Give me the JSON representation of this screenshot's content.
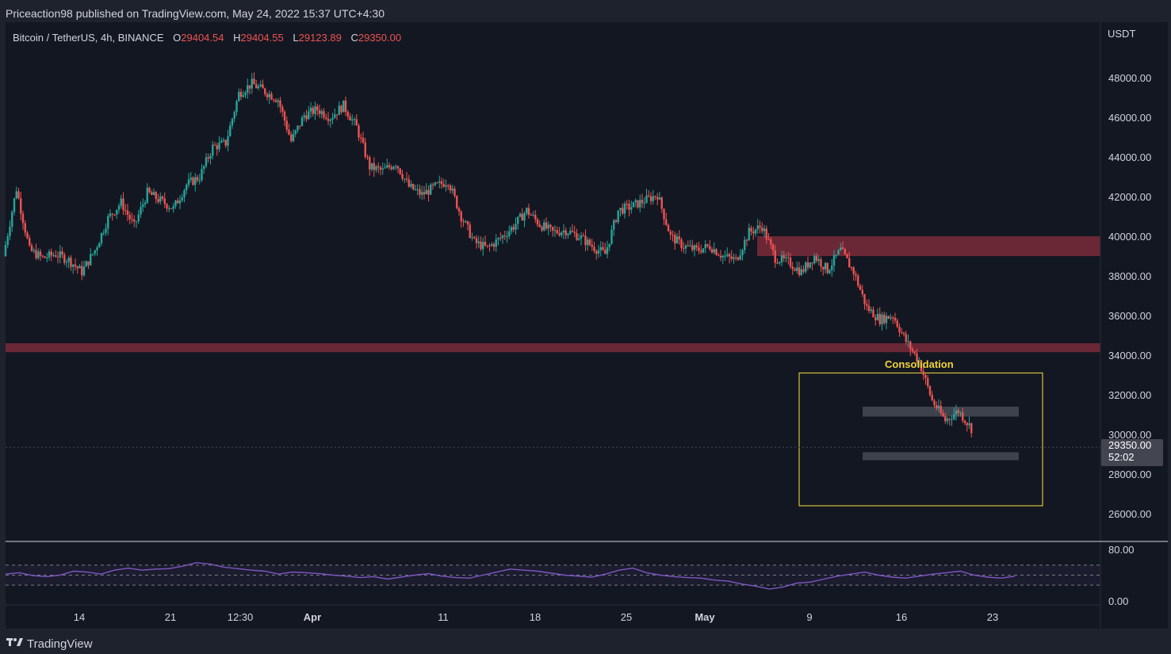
{
  "header": {
    "published_by": "Priceaction98 published on TradingView.com, May 24, 2022 15:37 UTC+4:30"
  },
  "legend": {
    "symbol": "Bitcoin / TetherUS, 4h, BINANCE",
    "open_label": "O",
    "open": "29404.54",
    "high_label": "H",
    "high": "29404.55",
    "low_label": "L",
    "low": "29123.89",
    "close_label": "C",
    "close": "29350.00"
  },
  "price_scale": {
    "currency": "USDT",
    "last_price": "29350.00",
    "countdown": "52:02"
  },
  "annotation": {
    "label": "Consolidation"
  },
  "branding": {
    "name": "TradingView"
  },
  "colors": {
    "up": "#26a69a",
    "down": "#ef5350",
    "zone": "#7a2a3a",
    "consolidation_box": "#d6c23a",
    "range_band": "#4a4d57",
    "rsi_line": "#7e57c2"
  },
  "chart_data": {
    "type": "candlestick",
    "title": "",
    "ylabel": "USDT",
    "ylim": [
      24500,
      49700
    ],
    "y_ticks": [
      48000,
      46000,
      44000,
      42000,
      40000,
      38000,
      36000,
      34000,
      32000,
      30000,
      28000,
      26000
    ],
    "x_ticks": [
      "14",
      "21",
      "12:30",
      "Apr",
      "11",
      "18",
      "25",
      "May",
      "9",
      "16",
      "23"
    ],
    "series_close": [
      {
        "date": "2022-03-10",
        "close": 39000
      },
      {
        "date": "2022-03-11",
        "close": 42400
      },
      {
        "date": "2022-03-12",
        "close": 39300
      },
      {
        "date": "2022-03-13",
        "close": 38900
      },
      {
        "date": "2022-03-14",
        "close": 39100
      },
      {
        "date": "2022-03-15",
        "close": 38800
      },
      {
        "date": "2022-03-16",
        "close": 38200
      },
      {
        "date": "2022-03-17",
        "close": 39300
      },
      {
        "date": "2022-03-18",
        "close": 40900
      },
      {
        "date": "2022-03-19",
        "close": 41700
      },
      {
        "date": "2022-03-20",
        "close": 40500
      },
      {
        "date": "2022-03-21",
        "close": 42200
      },
      {
        "date": "2022-03-22",
        "close": 41800
      },
      {
        "date": "2022-03-23",
        "close": 41400
      },
      {
        "date": "2022-03-24",
        "close": 42600
      },
      {
        "date": "2022-03-25",
        "close": 43000
      },
      {
        "date": "2022-03-26",
        "close": 44500
      },
      {
        "date": "2022-03-27",
        "close": 44700
      },
      {
        "date": "2022-03-28",
        "close": 47200
      },
      {
        "date": "2022-03-29",
        "close": 47700
      },
      {
        "date": "2022-03-30",
        "close": 47300
      },
      {
        "date": "2022-03-31",
        "close": 46900
      },
      {
        "date": "2022-04-01",
        "close": 44800
      },
      {
        "date": "2022-04-02",
        "close": 46100
      },
      {
        "date": "2022-04-03",
        "close": 46400
      },
      {
        "date": "2022-04-04",
        "close": 46000
      },
      {
        "date": "2022-04-05",
        "close": 46600
      },
      {
        "date": "2022-04-06",
        "close": 45500
      },
      {
        "date": "2022-04-07",
        "close": 43500
      },
      {
        "date": "2022-04-08",
        "close": 43300
      },
      {
        "date": "2022-04-09",
        "close": 43700
      },
      {
        "date": "2022-04-10",
        "close": 42500
      },
      {
        "date": "2022-04-11",
        "close": 42100
      },
      {
        "date": "2022-04-12",
        "close": 42500
      },
      {
        "date": "2022-04-13",
        "close": 42800
      },
      {
        "date": "2022-04-14",
        "close": 41000
      },
      {
        "date": "2022-04-15",
        "close": 39700
      },
      {
        "date": "2022-04-16",
        "close": 39400
      },
      {
        "date": "2022-04-17",
        "close": 39900
      },
      {
        "date": "2022-04-18",
        "close": 40500
      },
      {
        "date": "2022-04-19",
        "close": 41300
      },
      {
        "date": "2022-04-20",
        "close": 40600
      },
      {
        "date": "2022-04-21",
        "close": 40200
      },
      {
        "date": "2022-04-22",
        "close": 40300
      },
      {
        "date": "2022-04-23",
        "close": 40000
      },
      {
        "date": "2022-04-24",
        "close": 39500
      },
      {
        "date": "2022-04-25",
        "close": 39100
      },
      {
        "date": "2022-04-26",
        "close": 41300
      },
      {
        "date": "2022-04-27",
        "close": 41500
      },
      {
        "date": "2022-04-28",
        "close": 41800
      },
      {
        "date": "2022-04-29",
        "close": 42100
      },
      {
        "date": "2022-04-30",
        "close": 40000
      },
      {
        "date": "2022-05-01",
        "close": 39500
      },
      {
        "date": "2022-05-02",
        "close": 39300
      },
      {
        "date": "2022-05-03",
        "close": 39500
      },
      {
        "date": "2022-05-04",
        "close": 39000
      },
      {
        "date": "2022-05-05",
        "close": 38800
      },
      {
        "date": "2022-05-06",
        "close": 40200
      },
      {
        "date": "2022-05-07",
        "close": 40500
      },
      {
        "date": "2022-05-08",
        "close": 38900
      },
      {
        "date": "2022-05-09",
        "close": 38700
      },
      {
        "date": "2022-05-10",
        "close": 38200
      },
      {
        "date": "2022-05-11",
        "close": 39000
      },
      {
        "date": "2022-05-12",
        "close": 38300
      },
      {
        "date": "2022-05-13",
        "close": 39300
      },
      {
        "date": "2022-05-14",
        "close": 38200
      },
      {
        "date": "2022-05-15",
        "close": 36400
      },
      {
        "date": "2022-05-16",
        "close": 35800
      },
      {
        "date": "2022-05-17",
        "close": 36000
      },
      {
        "date": "2022-05-18",
        "close": 34700
      },
      {
        "date": "2022-05-19",
        "close": 33700
      },
      {
        "date": "2022-05-20",
        "close": 31700
      },
      {
        "date": "2022-05-21",
        "close": 30700
      },
      {
        "date": "2022-05-22",
        "close": 31200
      },
      {
        "date": "2022-05-23",
        "close": 30300
      }
    ],
    "zones": [
      {
        "type": "resistance",
        "from": 39000,
        "to": 40000
      },
      {
        "type": "support",
        "from": 34150,
        "to": 34600
      }
    ],
    "consolidation_box": {
      "label": "Consolidation",
      "from": 26400,
      "to": 33100
    },
    "range_bands": [
      {
        "from": 30900,
        "to": 31400
      },
      {
        "from": 28700,
        "to": 29100
      }
    ],
    "last_price": 29350.0,
    "rsi": {
      "ylim": [
        0,
        100
      ],
      "y_ticks": [
        80.0,
        0.0
      ],
      "levels": [
        70,
        50,
        30
      ],
      "values": [
        52,
        55,
        49,
        47,
        50,
        58,
        56,
        52,
        60,
        64,
        60,
        62,
        63,
        68,
        75,
        72,
        66,
        63,
        60,
        58,
        52,
        56,
        55,
        53,
        50,
        48,
        45,
        47,
        42,
        46,
        50,
        53,
        48,
        45,
        44,
        50,
        56,
        62,
        60,
        58,
        54,
        50,
        48,
        46,
        52,
        60,
        64,
        55,
        50,
        47,
        45,
        44,
        40,
        38,
        32,
        28,
        22,
        26,
        34,
        36,
        42,
        48,
        52,
        56,
        50,
        46,
        44,
        48,
        52,
        55,
        58,
        50,
        46,
        44,
        48
      ]
    }
  }
}
